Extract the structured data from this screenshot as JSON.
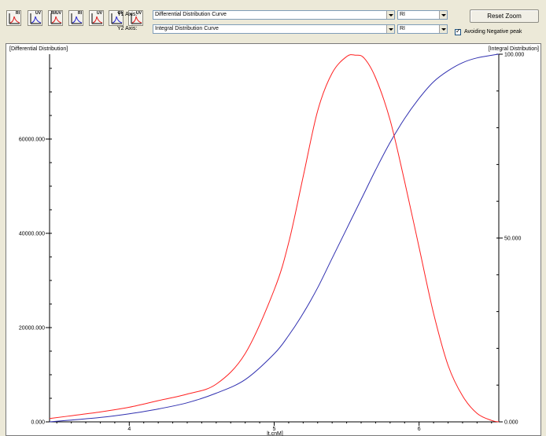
{
  "toolbar": {
    "buttons": [
      {
        "icon": "ri-chart-icon",
        "label": "RI"
      },
      {
        "icon": "uv-chart-icon",
        "label": "UV"
      },
      {
        "icon": "ri-uv-chart-icon",
        "label": "RI/UV"
      },
      {
        "icon": "ri-chart-alt-icon",
        "label": "RI"
      },
      {
        "icon": "uv-chart-alt-icon",
        "label": "UV"
      },
      {
        "icon": "ri-overlay-chart-icon",
        "label": "RI"
      },
      {
        "icon": "uv-overlay-chart-icon",
        "label": "UV"
      }
    ],
    "y1_label": "Y1 Axis:",
    "y1_value": "Differential Distribution Curve",
    "y1_detector": "RI",
    "y2_label": "Y2 Axis:",
    "y2_value": "Integral Distribution Curve",
    "y2_detector": "RI",
    "reset_zoom": "Reset Zoom",
    "avoid_neg_label": "Avoiding Negative peak",
    "avoid_neg_checked": true
  },
  "chart_data": {
    "type": "line",
    "left_axis_title": "[Differential Distribution]",
    "right_axis_title": "[Integral Distribution]",
    "xlabel": "lt.cnM]",
    "xlim": [
      3.45,
      6.55
    ],
    "y1lim": [
      0,
      78000
    ],
    "y2lim": [
      0,
      100
    ],
    "x_ticks": [
      "4",
      "5",
      "6"
    ],
    "y1_ticks": [
      "0.000",
      "20000.000",
      "40000.000",
      "60000.000"
    ],
    "y2_ticks": [
      "0.000",
      "50.000",
      "100.000"
    ],
    "colors": {
      "differential": "#ff2020",
      "integral": "#3030b0"
    },
    "series": [
      {
        "axis": "left",
        "x": [
          3.45,
          3.6,
          3.8,
          4.0,
          4.2,
          4.4,
          4.6,
          4.8,
          5.0,
          5.1,
          5.2,
          5.3,
          5.4,
          5.5,
          5.56,
          5.62,
          5.7,
          5.8,
          5.9,
          6.0,
          6.1,
          6.2,
          6.3,
          6.4,
          6.5,
          6.55
        ],
        "y": [
          700,
          1300,
          2100,
          3100,
          4500,
          5900,
          8000,
          14500,
          28000,
          38000,
          52000,
          66000,
          74000,
          77500,
          77800,
          77200,
          73000,
          64000,
          51000,
          37000,
          23000,
          12000,
          5500,
          1800,
          300,
          0
        ]
      },
      {
        "axis": "right",
        "x": [
          3.45,
          3.6,
          3.8,
          4.0,
          4.2,
          4.4,
          4.6,
          4.8,
          5.0,
          5.1,
          5.2,
          5.3,
          5.4,
          5.5,
          5.6,
          5.7,
          5.8,
          5.9,
          6.0,
          6.1,
          6.2,
          6.3,
          6.4,
          6.5,
          6.55
        ],
        "y": [
          0,
          0.5,
          1.2,
          2.2,
          3.5,
          5.2,
          7.8,
          11.5,
          18.5,
          23.5,
          29.5,
          36.5,
          44.5,
          52.5,
          60.5,
          68.5,
          76.0,
          82.5,
          88.0,
          92.5,
          95.5,
          97.7,
          99.0,
          99.7,
          100.0
        ]
      }
    ]
  }
}
